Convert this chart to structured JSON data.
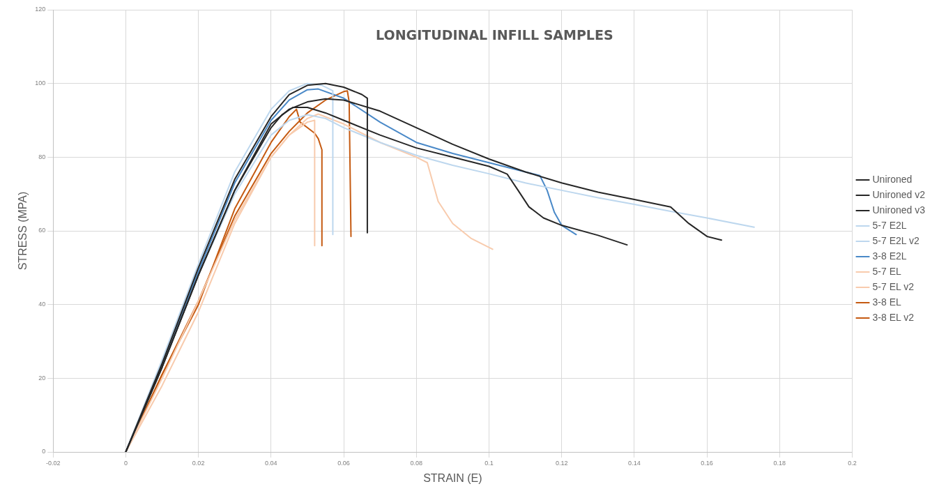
{
  "chart_data": {
    "type": "line",
    "title": "LONGITUDINAL INFILL SAMPLES",
    "xlabel": "STRAIN (E)",
    "ylabel": "STRESS (MPA)",
    "xlim": [
      -0.02,
      0.2
    ],
    "xticks": [
      -0.02,
      0,
      0.02,
      0.04,
      0.06,
      0.08,
      0.1,
      0.12,
      0.14,
      0.16,
      0.18,
      0.2
    ],
    "ylim": [
      0,
      120
    ],
    "yticks": [
      0,
      20,
      40,
      60,
      80,
      100,
      120
    ],
    "grid": true,
    "legend": "right",
    "marker": "none",
    "line_style": "solid",
    "series": [
      {
        "name": "Unironed",
        "color": "#262626",
        "x": [
          0,
          0.01,
          0.02,
          0.03,
          0.04,
          0.045,
          0.05,
          0.055,
          0.06,
          0.065,
          0.0665,
          0.0665
        ],
        "values": [
          0,
          24,
          50,
          74,
          91,
          97,
          99.5,
          100,
          99,
          97,
          96,
          59.5
        ]
      },
      {
        "name": "Unironed v2",
        "color": "#262626",
        "x": [
          0,
          0.01,
          0.02,
          0.03,
          0.04,
          0.045,
          0.05,
          0.055,
          0.06,
          0.07,
          0.08,
          0.09,
          0.1,
          0.11,
          0.12,
          0.13,
          0.14,
          0.15,
          0.155,
          0.16,
          0.164
        ],
        "values": [
          0,
          23,
          48,
          71,
          89,
          93,
          95,
          95.8,
          95.5,
          92.5,
          88,
          83.5,
          79.5,
          76,
          73,
          70.5,
          68.5,
          66.5,
          62,
          58.5,
          57.5
        ]
      },
      {
        "name": "Unironed v3",
        "color": "#262626",
        "x": [
          0,
          0.01,
          0.02,
          0.03,
          0.04,
          0.043,
          0.046,
          0.05,
          0.055,
          0.06,
          0.07,
          0.08,
          0.09,
          0.1,
          0.105,
          0.108,
          0.111,
          0.115,
          0.12,
          0.13,
          0.138
        ],
        "values": [
          0,
          23,
          48,
          71,
          88,
          91.5,
          93.5,
          93.5,
          92,
          90,
          86,
          82.5,
          80,
          77.5,
          75.4,
          71,
          66.5,
          63.5,
          61.5,
          58.8,
          56.2
        ]
      },
      {
        "name": "5-7 E2L",
        "color": "#bdd7ee",
        "x": [
          0,
          0.01,
          0.02,
          0.03,
          0.04,
          0.045,
          0.05,
          0.054,
          0.057,
          0.057
        ],
        "values": [
          0,
          25,
          51,
          76,
          93,
          98,
          100,
          99.5,
          98,
          59
        ]
      },
      {
        "name": "5-7 E2L v2",
        "color": "#bdd7ee",
        "x": [
          0,
          0.01,
          0.02,
          0.03,
          0.04,
          0.045,
          0.05,
          0.055,
          0.06,
          0.07,
          0.08,
          0.09,
          0.1,
          0.11,
          0.12,
          0.13,
          0.14,
          0.15,
          0.16,
          0.173
        ],
        "values": [
          0,
          23,
          48,
          70,
          86,
          90,
          91.5,
          90.5,
          88,
          84,
          80.5,
          77.8,
          75.5,
          73,
          71,
          69,
          67.2,
          65.3,
          63.5,
          61
        ]
      },
      {
        "name": "3-8 E2L",
        "color": "#4a89c8",
        "x": [
          0,
          0.01,
          0.02,
          0.03,
          0.04,
          0.045,
          0.05,
          0.053,
          0.06,
          0.07,
          0.08,
          0.09,
          0.1,
          0.11,
          0.114,
          0.116,
          0.118,
          0.12,
          0.124
        ],
        "values": [
          0,
          24,
          49,
          73,
          90,
          95.5,
          98.3,
          98.5,
          96,
          89.5,
          84,
          81,
          78.5,
          76,
          75,
          71,
          65,
          61.5,
          59
        ]
      },
      {
        "name": "5-7 EL",
        "color": "#f8cbad",
        "x": [
          0,
          0.01,
          0.02,
          0.03,
          0.04,
          0.045,
          0.05,
          0.052,
          0.052
        ],
        "values": [
          0,
          18,
          38,
          62,
          80,
          86,
          89.5,
          90,
          56
        ]
      },
      {
        "name": "5-7 EL v2",
        "color": "#f8cbad",
        "x": [
          0,
          0.01,
          0.02,
          0.03,
          0.04,
          0.045,
          0.05,
          0.053,
          0.06,
          0.07,
          0.08,
          0.083,
          0.086,
          0.09,
          0.095,
          0.101
        ],
        "values": [
          0,
          20,
          41,
          63,
          80,
          86,
          90.5,
          91.7,
          89,
          84,
          80,
          78.5,
          68,
          62,
          58,
          55
        ]
      },
      {
        "name": "3-8 EL",
        "color": "#c55a11",
        "x": [
          0,
          0.01,
          0.02,
          0.03,
          0.04,
          0.045,
          0.047,
          0.048,
          0.05,
          0.052,
          0.053,
          0.054,
          0.054
        ],
        "values": [
          0,
          21,
          40,
          66,
          84,
          91,
          93,
          89.5,
          88,
          86.5,
          85,
          82,
          56
        ]
      },
      {
        "name": "3-8 EL v2",
        "color": "#c55a11",
        "x": [
          0,
          0.01,
          0.02,
          0.03,
          0.04,
          0.045,
          0.05,
          0.055,
          0.06,
          0.061,
          0.0615,
          0.062
        ],
        "values": [
          0,
          21,
          41,
          64,
          81,
          87,
          92,
          95.5,
          97.8,
          98,
          95,
          58.5
        ]
      }
    ]
  }
}
